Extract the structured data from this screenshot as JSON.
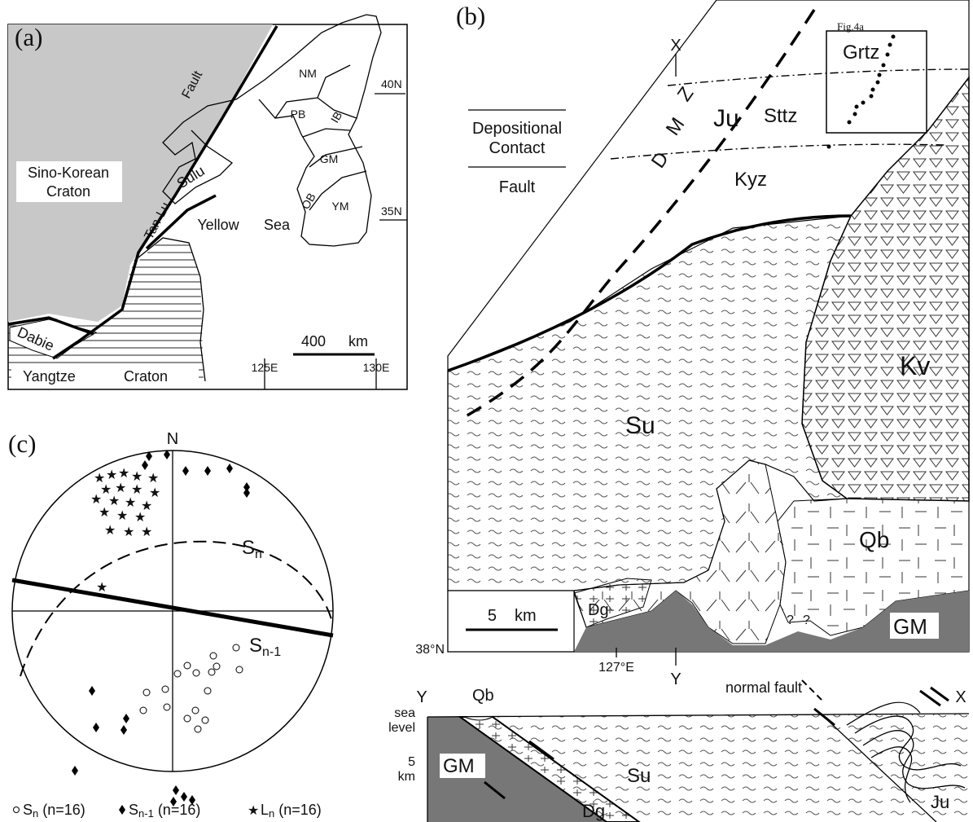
{
  "panel_a": {
    "label": "(a)",
    "fault_1": "Tan-Lu",
    "fault_2": "Fault",
    "craton_1": "Sino-Korean",
    "craton_2": "Craton",
    "sulu": "Sulu",
    "yellow": "Yellow",
    "sea": "Sea",
    "dabie": "Dabie",
    "yangtze": "Yangtze",
    "yangtze_craton": "Craton",
    "regions": [
      "NM",
      "PB",
      "IB",
      "GM",
      "OB",
      "YM"
    ],
    "lat_labels": [
      "40N",
      "35N"
    ],
    "lon_labels": [
      "125E",
      "130E"
    ],
    "scale_value": 400,
    "scale_unit": "km"
  },
  "panel_b": {
    "label": "(b)",
    "x_end": "X",
    "y_end": "Y",
    "fig_ref": "Fig.4a",
    "zones": [
      "Grtz",
      "Sttz",
      "Kyz"
    ],
    "ju": "Ju",
    "dmz": [
      "D",
      "M",
      "Z"
    ],
    "legend": [
      "Depositional",
      "Contact",
      "Fault"
    ],
    "units": {
      "su": "Su",
      "kv": "Kv",
      "qb": "Qb",
      "dg": "Dg",
      "gm": "GM"
    },
    "scale_value": 5,
    "scale_unit": "km",
    "lat": "38°N",
    "lon": "127°E",
    "unknown": [
      "?",
      "?"
    ]
  },
  "section": {
    "left_end": "Y",
    "right_end": "X",
    "qb": "Qb",
    "normal_fault": "normal fault",
    "sea_level": [
      "sea",
      "level"
    ],
    "depth_value": 5,
    "depth_unit": "km",
    "gm": "GM",
    "su": "Su",
    "dg": "Dg",
    "ju": "Ju"
  },
  "panel_c": {
    "label": "(c)",
    "north": "N",
    "sn": {
      "main": "S",
      "sub": "n"
    },
    "sn1": {
      "main": "S",
      "sub": "n-1"
    },
    "legend": [
      {
        "main": "S",
        "sub": "n",
        "count": "(n=16)"
      },
      {
        "main": "S",
        "sub": "n-1",
        "count": "(n=16)"
      },
      {
        "main": "L",
        "sub": "n",
        "count": "(n=16)"
      }
    ]
  }
}
